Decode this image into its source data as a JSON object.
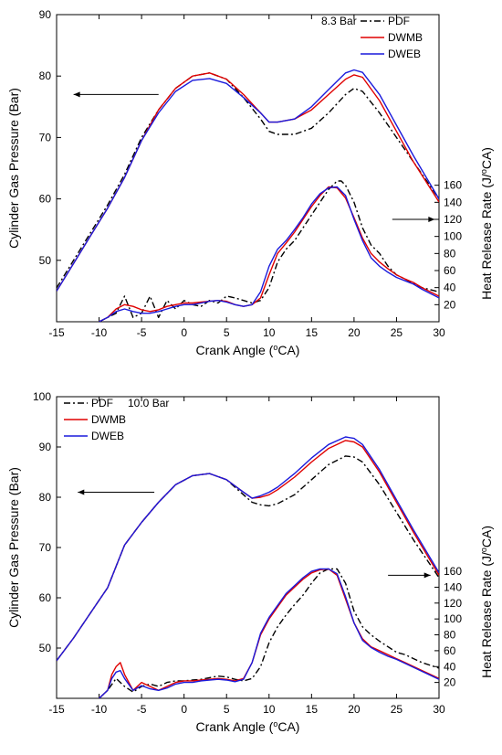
{
  "chart_data": [
    {
      "type": "line",
      "condition_label": "8.3 Bar",
      "xlabel": "Crank Angle (°CA)",
      "ylabel_left": "Cylinder Gas Pressure (Bar)",
      "ylabel_right": "Heat Release Rate (J/°CA)",
      "xlim": [
        -15,
        30
      ],
      "ylim_left": [
        40,
        90
      ],
      "ylim_right": [
        0,
        360
      ],
      "x_ticks": [
        -15,
        -10,
        -5,
        0,
        5,
        10,
        15,
        20,
        25,
        30
      ],
      "y_left_ticks": [
        50,
        60,
        70,
        80,
        90
      ],
      "y_right_ticks": [
        20,
        40,
        60,
        80,
        100,
        120,
        140,
        160
      ],
      "legend": {
        "placement": "top-right",
        "entries": [
          "PDF",
          "DWMB",
          "DWEB"
        ]
      },
      "arrows": [
        {
          "points_to": "left axis",
          "from": [
            -3,
            77
          ],
          "to": [
            -13,
            77
          ]
        },
        {
          "points_to": "right axis",
          "from": [
            24.5,
            120
          ],
          "to": [
            29.5,
            120
          ]
        }
      ],
      "series": [
        {
          "name": "PDF",
          "color": "#000000",
          "dash": "dashdot",
          "axis": "left",
          "x": [
            -15,
            -13,
            -11,
            -9,
            -7,
            -5,
            -3,
            -1,
            1,
            3,
            5,
            7,
            9,
            10,
            11,
            13,
            15,
            17,
            19,
            20,
            21,
            23,
            25,
            27,
            30
          ],
          "y": [
            45.5,
            50,
            54.5,
            59,
            64,
            70,
            74.5,
            78,
            80,
            80.5,
            79.5,
            76.5,
            73,
            71,
            70.5,
            70.5,
            71.5,
            74,
            77,
            78,
            77.5,
            74,
            70,
            66,
            60
          ]
        },
        {
          "name": "DWMB",
          "color": "#e00000",
          "dash": "solid",
          "axis": "left",
          "x": [
            -15,
            -13,
            -11,
            -9,
            -7,
            -5,
            -3,
            -1,
            1,
            3,
            5,
            7,
            9,
            10,
            11,
            13,
            15,
            17,
            19,
            20,
            21,
            23,
            25,
            27,
            30
          ],
          "y": [
            45,
            49.5,
            54,
            58.5,
            63.5,
            69.5,
            74.5,
            78,
            80,
            80.5,
            79.5,
            77,
            74,
            72.5,
            72.5,
            73,
            74.5,
            77,
            79.5,
            80.2,
            79.8,
            76,
            71,
            66,
            59.5
          ]
        },
        {
          "name": "DWEB",
          "color": "#1a1adc",
          "dash": "solid",
          "axis": "left",
          "x": [
            -15,
            -13,
            -11,
            -9,
            -7,
            -5,
            -3,
            -1,
            1,
            3,
            5,
            7,
            9,
            10,
            11,
            13,
            15,
            17,
            19,
            20,
            21,
            23,
            25,
            27,
            30
          ],
          "y": [
            45,
            49.5,
            54,
            58.5,
            63.5,
            69.5,
            74,
            77.5,
            79.3,
            79.6,
            78.8,
            76.5,
            74,
            72.5,
            72.5,
            73,
            75,
            77.8,
            80.5,
            81,
            80.6,
            77,
            72,
            67,
            60
          ]
        },
        {
          "name": "PDF",
          "color": "#000000",
          "dash": "dashdot",
          "axis": "right",
          "x": [
            -10,
            -8,
            -7.5,
            -7,
            -6,
            -5,
            -4,
            -3,
            -2,
            -1,
            0,
            1,
            2,
            3,
            4,
            5,
            6,
            7,
            8,
            9,
            10,
            11,
            12,
            13,
            14,
            15,
            16,
            17,
            18,
            18.5,
            19,
            20,
            21,
            22,
            23,
            24,
            25,
            26,
            27,
            28,
            30
          ],
          "y": [
            0,
            10,
            20,
            30,
            5,
            10,
            30,
            5,
            25,
            15,
            25,
            20,
            18,
            25,
            22,
            30,
            28,
            25,
            22,
            25,
            40,
            70,
            85,
            95,
            110,
            125,
            140,
            155,
            165,
            165,
            160,
            140,
            110,
            90,
            80,
            65,
            55,
            50,
            45,
            40,
            35
          ]
        },
        {
          "name": "DWMB",
          "color": "#e00000",
          "dash": "solid",
          "axis": "right",
          "x": [
            -10,
            -9,
            -8,
            -7,
            -6,
            -5,
            -4,
            -3,
            -2,
            -1,
            0,
            1,
            2,
            3,
            4,
            5,
            6,
            7,
            8,
            9,
            10,
            11,
            12,
            13,
            14,
            15,
            16,
            17,
            18,
            19,
            20,
            21,
            22,
            23,
            24,
            25,
            26,
            27,
            28,
            30
          ],
          "y": [
            0,
            5,
            15,
            20,
            18,
            14,
            12,
            14,
            18,
            20,
            22,
            22,
            23,
            24,
            25,
            24,
            20,
            18,
            20,
            28,
            55,
            80,
            92,
            105,
            120,
            135,
            148,
            158,
            157,
            145,
            122,
            98,
            80,
            70,
            62,
            55,
            50,
            46,
            40,
            30
          ]
        },
        {
          "name": "DWEB",
          "color": "#1a1adc",
          "dash": "solid",
          "axis": "right",
          "x": [
            -10,
            -9,
            -8,
            -7,
            -6,
            -5,
            -4,
            -3,
            -2,
            -1,
            0,
            1,
            2,
            3,
            4,
            5,
            6,
            7,
            8,
            9,
            10,
            11,
            12,
            13,
            14,
            15,
            16,
            17,
            18,
            19,
            20,
            21,
            22,
            23,
            24,
            25,
            26,
            27,
            28,
            30
          ],
          "y": [
            0,
            5,
            12,
            15,
            12,
            10,
            10,
            12,
            15,
            18,
            20,
            20,
            22,
            24,
            25,
            23,
            20,
            18,
            20,
            35,
            65,
            85,
            95,
            108,
            122,
            138,
            150,
            157,
            158,
            148,
            120,
            95,
            75,
            65,
            58,
            52,
            48,
            44,
            38,
            28
          ]
        }
      ]
    },
    {
      "type": "line",
      "condition_label": "10.0 Bar",
      "xlabel": "Crank Angle (°CA)",
      "ylabel_left": "Cylinder Gas Pressure (Bar)",
      "ylabel_right": "Heat Release Rate (J/°CA)",
      "xlim": [
        -15,
        30
      ],
      "ylim_left": [
        40,
        100
      ],
      "ylim_right": [
        0,
        380
      ],
      "x_ticks": [
        -15,
        -10,
        -5,
        0,
        5,
        10,
        15,
        20,
        25,
        30
      ],
      "y_left_ticks": [
        50,
        60,
        70,
        80,
        90,
        100
      ],
      "y_right_ticks": [
        20,
        40,
        60,
        80,
        100,
        120,
        140,
        160
      ],
      "legend": {
        "placement": "top-left",
        "entries": [
          "PDF",
          "DWMB",
          "DWEB"
        ]
      },
      "arrows": [
        {
          "points_to": "left axis",
          "from": [
            -3.5,
            81
          ],
          "to": [
            -12.5,
            81
          ]
        },
        {
          "points_to": "right axis",
          "from": [
            24,
            155
          ],
          "to": [
            29,
            155
          ]
        }
      ],
      "series": [
        {
          "name": "PDF",
          "color": "#000000",
          "dash": "dashdot",
          "axis": "left",
          "x": [
            -15,
            -13,
            -11,
            -9,
            -7,
            -5,
            -3,
            -1,
            1,
            3,
            5,
            7,
            8,
            9,
            10,
            11,
            13,
            15,
            17,
            19,
            20,
            21,
            23,
            25,
            27,
            30
          ],
          "y": [
            47.5,
            52,
            57,
            62,
            70.5,
            75,
            79,
            82.5,
            84.3,
            84.7,
            83.5,
            80.5,
            79,
            78.5,
            78.3,
            78.7,
            80.5,
            83.5,
            86.5,
            88.2,
            88,
            87,
            82.5,
            77,
            71.5,
            64
          ]
        },
        {
          "name": "DWMB",
          "color": "#e00000",
          "dash": "solid",
          "axis": "left",
          "x": [
            -15,
            -13,
            -11,
            -9,
            -7,
            -5,
            -3,
            -1,
            1,
            3,
            5,
            7,
            8,
            9,
            10,
            11,
            13,
            15,
            17,
            19,
            20,
            21,
            23,
            25,
            27,
            30
          ],
          "y": [
            47.5,
            52,
            57,
            62,
            70.5,
            75,
            79,
            82.5,
            84.3,
            84.7,
            83.5,
            81,
            79.8,
            80,
            80.5,
            81.5,
            84,
            87,
            89.7,
            91.3,
            91,
            90,
            85,
            79,
            73,
            64.5
          ]
        },
        {
          "name": "DWEB",
          "color": "#1a1adc",
          "dash": "solid",
          "axis": "left",
          "x": [
            -15,
            -13,
            -11,
            -9,
            -7,
            -5,
            -3,
            -1,
            1,
            3,
            5,
            7,
            8,
            9,
            10,
            11,
            13,
            15,
            17,
            19,
            20,
            21,
            23,
            25,
            27,
            30
          ],
          "y": [
            47.5,
            52,
            57,
            62,
            70.5,
            75,
            79,
            82.5,
            84.3,
            84.7,
            83.5,
            81,
            79.8,
            80.3,
            81,
            82,
            84.7,
            87.8,
            90.5,
            92,
            91.7,
            90.5,
            85.5,
            79.5,
            73.5,
            65
          ]
        },
        {
          "name": "PDF",
          "color": "#000000",
          "dash": "dashdot",
          "axis": "right",
          "x": [
            -10,
            -9,
            -8,
            -7,
            -6,
            -5,
            -4,
            -3,
            -2,
            -1,
            0,
            1,
            2,
            3,
            4,
            5,
            6,
            7,
            8,
            9,
            10,
            11,
            12,
            13,
            14,
            15,
            16,
            17,
            18,
            19,
            20,
            21,
            22,
            23,
            24,
            25,
            26,
            27,
            28,
            30
          ],
          "y": [
            0,
            10,
            25,
            15,
            8,
            15,
            18,
            15,
            20,
            22,
            22,
            23,
            24,
            26,
            28,
            27,
            24,
            22,
            25,
            40,
            70,
            90,
            105,
            118,
            130,
            145,
            158,
            163,
            163,
            145,
            110,
            90,
            80,
            72,
            65,
            58,
            55,
            50,
            45,
            38
          ]
        },
        {
          "name": "DWMB",
          "color": "#e00000",
          "dash": "solid",
          "axis": "right",
          "x": [
            -10,
            -9,
            -8.5,
            -8,
            -7.5,
            -7,
            -6,
            -5,
            -4,
            -3,
            -2,
            -1,
            0,
            1,
            2,
            3,
            4,
            5,
            6,
            7,
            8,
            9,
            10,
            11,
            12,
            13,
            14,
            15,
            16,
            17,
            18,
            19,
            20,
            21,
            22,
            23,
            24,
            25,
            26,
            27,
            28,
            30
          ],
          "y": [
            0,
            10,
            30,
            40,
            45,
            30,
            10,
            20,
            15,
            10,
            15,
            20,
            22,
            22,
            23,
            24,
            25,
            24,
            22,
            25,
            45,
            80,
            100,
            115,
            130,
            140,
            150,
            158,
            162,
            163,
            155,
            125,
            95,
            75,
            65,
            60,
            55,
            50,
            45,
            40,
            35,
            25
          ]
        },
        {
          "name": "DWEB",
          "color": "#1a1adc",
          "dash": "solid",
          "axis": "right",
          "x": [
            -10,
            -9,
            -8.5,
            -8,
            -7.5,
            -7,
            -6,
            -5,
            -4,
            -3,
            -2,
            -1,
            0,
            1,
            2,
            3,
            4,
            5,
            6,
            7,
            8,
            9,
            10,
            11,
            12,
            13,
            14,
            15,
            16,
            17,
            18,
            19,
            20,
            21,
            22,
            23,
            24,
            25,
            26,
            27,
            28,
            30
          ],
          "y": [
            0,
            10,
            25,
            33,
            35,
            25,
            10,
            16,
            12,
            10,
            13,
            18,
            20,
            20,
            22,
            23,
            24,
            23,
            21,
            24,
            45,
            82,
            102,
            117,
            132,
            142,
            152,
            160,
            163,
            163,
            157,
            128,
            95,
            73,
            64,
            58,
            53,
            49,
            44,
            39,
            34,
            24
          ]
        }
      ]
    }
  ]
}
